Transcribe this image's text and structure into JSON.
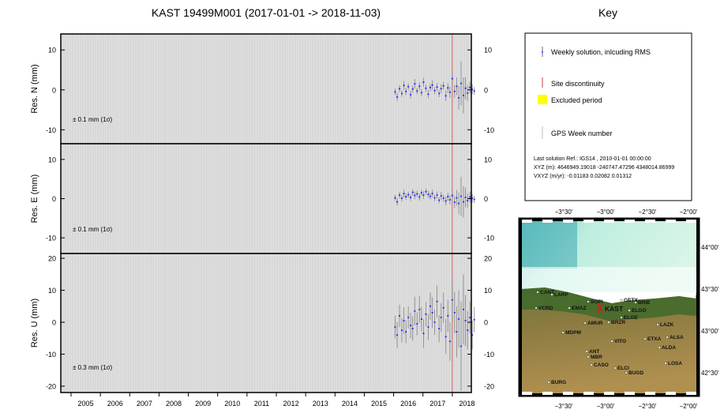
{
  "title": "KAST 19499M001 (2017-01-01 -> 2018-11-03)",
  "key": {
    "title": "Key",
    "items": [
      "Weekly solution, inlcuding RMS",
      "Site discontinuity",
      "Excluded period",
      "GPS Week number"
    ],
    "solution_lines": [
      "Last solution Ref.: IGS14 , 2010-01-01 00:00:00",
      "XYZ (m):  4646949.19018  -240747.47296  4348014.86999",
      "VXYZ (m/yr):    -0.01183      0.02082      0.01312"
    ],
    "colors": {
      "weekly": "#6a6a6a",
      "discontinuity": "#d06060",
      "excluded": "#ffff00",
      "week": "#bbbbbb"
    }
  },
  "chart_data": [
    {
      "type": "scatter",
      "ylabel": "Res. N (mm)",
      "ylim": [
        -13.5,
        14
      ],
      "yticks": [
        -10,
        0,
        10
      ],
      "annotation": "± 0.1 mm (1σ)",
      "x": [
        2016.05,
        2016.12,
        2016.2,
        2016.28,
        2016.35,
        2016.42,
        2016.5,
        2016.58,
        2016.65,
        2016.72,
        2016.8,
        2016.88,
        2016.95,
        2017.02,
        2017.1,
        2017.18,
        2017.25,
        2017.32,
        2017.4,
        2017.48,
        2017.55,
        2017.62,
        2017.7,
        2017.78,
        2017.85,
        2017.92,
        2018.0,
        2018.08,
        2018.15,
        2018.22,
        2018.3,
        2018.38,
        2018.45,
        2018.52,
        2018.6,
        2018.68,
        2018.75
      ],
      "y": [
        -0.5,
        -1.8,
        0.3,
        -0.9,
        1.1,
        -0.4,
        0.8,
        -1.2,
        0.2,
        1.5,
        -0.3,
        0.9,
        -0.7,
        1.9,
        0.4,
        -1.1,
        0.6,
        1.2,
        -0.2,
        0.7,
        -0.9,
        0.3,
        1.0,
        -1.5,
        0.5,
        -0.6,
        2.8,
        -0.4,
        0.9,
        -2.0,
        1.6,
        -1.4,
        0.4,
        -0.8,
        0.6,
        0.1,
        -0.3
      ],
      "rms": [
        0.8,
        1.0,
        0.9,
        0.8,
        1.1,
        0.9,
        0.8,
        1.0,
        0.9,
        1.2,
        0.8,
        1.0,
        0.9,
        1.1,
        0.9,
        1.0,
        0.9,
        1.2,
        0.9,
        1.0,
        0.9,
        1.1,
        1.0,
        1.3,
        1.2,
        1.4,
        2.0,
        1.6,
        2.2,
        3.0,
        5.5,
        4.5,
        2.8,
        2.0,
        1.5,
        1.2,
        1.0
      ]
    },
    {
      "type": "scatter",
      "ylabel": "Res. E (mm)",
      "ylim": [
        -14,
        14
      ],
      "yticks": [
        -10,
        0,
        10
      ],
      "annotation": "± 0.1 mm (1σ)",
      "x": [
        2016.05,
        2016.12,
        2016.2,
        2016.28,
        2016.35,
        2016.42,
        2016.5,
        2016.58,
        2016.65,
        2016.72,
        2016.8,
        2016.88,
        2016.95,
        2017.02,
        2017.1,
        2017.18,
        2017.25,
        2017.32,
        2017.4,
        2017.48,
        2017.55,
        2017.62,
        2017.7,
        2017.78,
        2017.85,
        2017.92,
        2018.0,
        2018.08,
        2018.15,
        2018.22,
        2018.3,
        2018.38,
        2018.45,
        2018.52,
        2018.6,
        2018.68,
        2018.75
      ],
      "y": [
        0.2,
        -0.8,
        0.9,
        0.1,
        1.3,
        0.5,
        1.0,
        0.3,
        1.6,
        0.8,
        1.2,
        0.4,
        1.5,
        0.9,
        1.8,
        1.1,
        0.6,
        1.3,
        0.2,
        0.9,
        -0.4,
        0.7,
        0.1,
        -0.6,
        0.5,
        -0.3,
        0.8,
        -0.9,
        0.2,
        -1.2,
        0.6,
        -0.8,
        0.3,
        -0.5,
        0.4,
        0.1,
        -0.2
      ],
      "rms": [
        0.7,
        0.9,
        0.8,
        0.8,
        1.0,
        0.8,
        0.8,
        0.9,
        0.8,
        1.0,
        0.8,
        0.9,
        0.8,
        1.0,
        0.8,
        0.9,
        0.8,
        1.0,
        0.8,
        0.9,
        0.8,
        1.0,
        0.9,
        1.1,
        1.0,
        1.2,
        1.8,
        1.5,
        2.0,
        2.8,
        5.0,
        4.0,
        2.5,
        1.8,
        1.4,
        1.1,
        0.9
      ]
    },
    {
      "type": "scatter",
      "ylabel": "Res. U (mm)",
      "ylim": [
        -22,
        21.5
      ],
      "yticks": [
        -20,
        -10,
        0,
        10,
        20
      ],
      "annotation": "± 0.3 mm (1σ)",
      "x": [
        2016.05,
        2016.12,
        2016.2,
        2016.28,
        2016.35,
        2016.42,
        2016.5,
        2016.58,
        2016.65,
        2016.72,
        2016.8,
        2016.88,
        2016.95,
        2017.02,
        2017.1,
        2017.18,
        2017.25,
        2017.32,
        2017.4,
        2017.48,
        2017.55,
        2017.62,
        2017.7,
        2017.78,
        2017.85,
        2017.92,
        2018.0,
        2018.08,
        2018.15,
        2018.22,
        2018.3,
        2018.38,
        2018.45,
        2018.52,
        2018.6,
        2018.68,
        2018.75
      ],
      "y": [
        -1.5,
        -4.0,
        2.0,
        -2.5,
        0.5,
        -3.0,
        1.5,
        -1.0,
        -2.0,
        3.5,
        -0.5,
        4.0,
        1.0,
        -3.5,
        2.5,
        -1.5,
        5.0,
        3.0,
        0.0,
        6.5,
        -2.0,
        1.5,
        4.5,
        -4.5,
        2.0,
        -6.0,
        7.0,
        3.0,
        -3.0,
        1.0,
        -7.5,
        4.0,
        0.5,
        -2.5,
        1.5,
        -4.0,
        0.8
      ],
      "rms": [
        3.5,
        4.0,
        3.5,
        3.8,
        4.2,
        3.6,
        3.5,
        4.0,
        3.8,
        4.5,
        3.6,
        4.2,
        3.8,
        4.5,
        3.8,
        4.0,
        4.2,
        4.8,
        4.0,
        5.0,
        4.2,
        4.5,
        4.8,
        5.5,
        5.0,
        6.0,
        7.0,
        6.5,
        8.0,
        9.0,
        14.0,
        11.0,
        8.0,
        6.0,
        5.0,
        4.5,
        4.0
      ]
    }
  ],
  "xaxis": {
    "xlim": [
      2004.65,
      2018.65
    ],
    "ticks": [
      "2005",
      "2006",
      "2007",
      "2008",
      "2009",
      "2010",
      "2011",
      "2012",
      "2013",
      "2014",
      "2015",
      "2016",
      "2017",
      "2018"
    ],
    "discontinuity_x": 2018.0
  },
  "map": {
    "lon_ticks": [
      "−3°30'",
      "−3°00'",
      "−2°30'",
      "−2°00'"
    ],
    "lat_ticks": [
      "44°00'",
      "43°30'",
      "43°00'",
      "42°30'"
    ],
    "target_station": "KAST",
    "stations": [
      "CANT",
      "LARP",
      "SOPI",
      "GETX",
      "BRIE",
      "ELGO",
      "VCRD",
      "EMAZ",
      "ELGE",
      "AMUR",
      "BRZR",
      "LAZK",
      "MDPM",
      "VITO",
      "ETXA",
      "ALSA",
      "ALDA",
      "ANT",
      "MBR",
      "LOSA",
      "CASO",
      "ELCI",
      "BUGD",
      "BURG"
    ]
  }
}
